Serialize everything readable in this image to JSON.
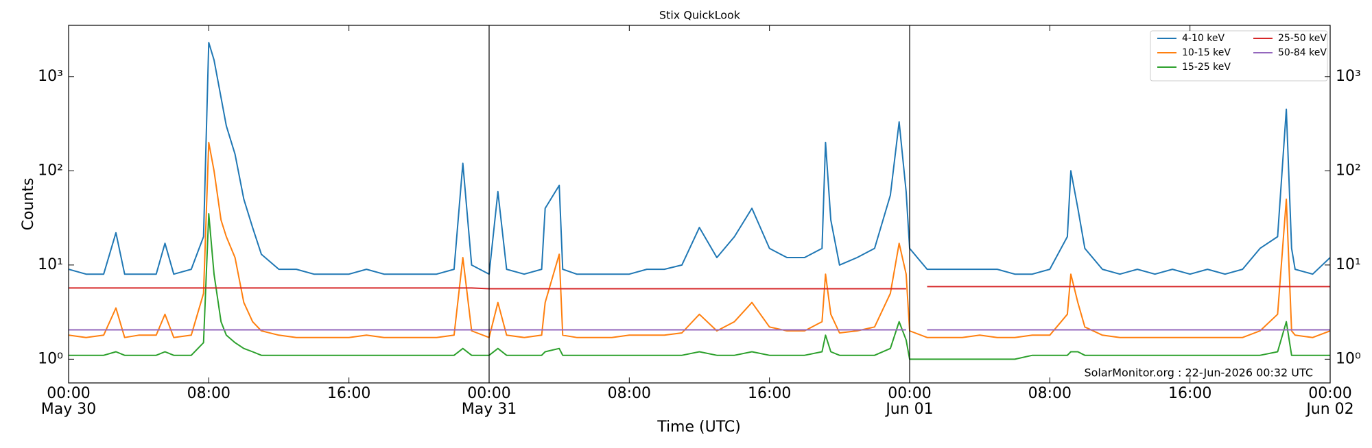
{
  "chart_data": {
    "type": "line",
    "title": "Stix QuickLook",
    "x_label": "Time (UTC)",
    "y_label": "Counts",
    "annotation": "SolarMonitor.org : 22-Jun-2026 00:32 UTC",
    "log_y": true,
    "grid": false,
    "legend": "upper right",
    "legend_columns": 2,
    "day_separators": true,
    "xlim": [
      "May 30 00:00",
      "Jun 02 00:00"
    ],
    "xticks": [
      {
        "value": "May 30 00:00",
        "label": "00:00",
        "date": "May 30"
      },
      {
        "value": "May 30 08:00",
        "label": "08:00"
      },
      {
        "value": "May 30 16:00",
        "label": "16:00"
      },
      {
        "value": "May 31 00:00",
        "label": "00:00",
        "date": "May 31"
      },
      {
        "value": "May 31 08:00",
        "label": "08:00"
      },
      {
        "value": "May 31 16:00",
        "label": "16:00"
      },
      {
        "value": "Jun 01 00:00",
        "label": "00:00",
        "date": "Jun 01"
      },
      {
        "value": "Jun 01 08:00",
        "label": "08:00"
      },
      {
        "value": "Jun 01 16:00",
        "label": "16:00"
      },
      {
        "value": "Jun 02 00:00",
        "label": "00:00",
        "date": "Jun 02"
      }
    ],
    "ylim": [
      0.56,
      3500
    ],
    "yticks": [
      {
        "value": 1,
        "label": "10⁰"
      },
      {
        "value": 10,
        "label": "10¹"
      },
      {
        "value": 100,
        "label": "10²"
      },
      {
        "value": 1000,
        "label": "10³"
      }
    ],
    "x": [
      "May 30 00:00",
      "May 30 01:00",
      "May 30 02:00",
      "May 30 02:42",
      "May 30 03:12",
      "May 30 04:00",
      "May 30 05:00",
      "May 30 05:30",
      "May 30 06:00",
      "May 30 07:00",
      "May 30 07:42",
      "May 30 08:00",
      "May 30 08:18",
      "May 30 08:42",
      "May 30 09:00",
      "May 30 09:30",
      "May 30 10:00",
      "May 30 10:30",
      "May 30 11:00",
      "May 30 12:00",
      "May 30 13:00",
      "May 30 14:00",
      "May 30 15:00",
      "May 30 16:00",
      "May 30 17:00",
      "May 30 18:00",
      "May 30 19:00",
      "May 30 20:00",
      "May 30 21:00",
      "May 30 22:00",
      "May 30 22:30",
      "May 30 23:00",
      "May 31 00:00",
      "May 31 00:30",
      "May 31 01:00",
      "May 31 02:00",
      "May 31 03:00",
      "May 31 03:12",
      "May 31 04:00",
      "May 31 04:12",
      "May 31 05:00",
      "May 31 06:00",
      "May 31 07:00",
      "May 31 08:00",
      "May 31 09:00",
      "May 31 10:00",
      "May 31 11:00",
      "May 31 12:00",
      "May 31 13:00",
      "May 31 14:00",
      "May 31 15:00",
      "May 31 16:00",
      "May 31 17:00",
      "May 31 18:00",
      "May 31 19:00",
      "May 31 19:12",
      "May 31 19:30",
      "May 31 20:00",
      "May 31 21:00",
      "May 31 22:00",
      "May 31 22:54",
      "May 31 23:24",
      "May 31 23:48",
      "Jun 01 00:00",
      "Jun 01 01:00",
      "Jun 01 02:00",
      "Jun 01 03:00",
      "Jun 01 04:00",
      "Jun 01 05:00",
      "Jun 01 06:00",
      "Jun 01 07:00",
      "Jun 01 08:00",
      "Jun 01 09:00",
      "Jun 01 09:12",
      "Jun 01 09:36",
      "Jun 01 10:00",
      "Jun 01 11:00",
      "Jun 01 12:00",
      "Jun 01 13:00",
      "Jun 01 14:00",
      "Jun 01 15:00",
      "Jun 01 16:00",
      "Jun 01 17:00",
      "Jun 01 18:00",
      "Jun 01 19:00",
      "Jun 01 20:00",
      "Jun 01 21:00",
      "Jun 01 21:30",
      "Jun 01 21:48",
      "Jun 01 22:00",
      "Jun 01 23:00",
      "Jun 02 00:00"
    ],
    "series": [
      {
        "name": "4-10 keV",
        "color": "#1f77b4",
        "values": [
          9,
          8,
          8,
          22,
          8,
          8,
          8,
          17,
          8,
          9,
          20,
          2300,
          1500,
          600,
          300,
          150,
          50,
          25,
          13,
          9,
          9,
          8,
          8,
          8,
          9,
          8,
          8,
          8,
          8,
          9,
          120,
          10,
          8,
          60,
          9,
          8,
          9,
          40,
          70,
          9,
          8,
          8,
          8,
          8,
          9,
          9,
          10,
          25,
          12,
          20,
          40,
          15,
          12,
          12,
          15,
          200,
          30,
          10,
          12,
          15,
          55,
          330,
          60,
          15,
          9,
          9,
          9,
          9,
          9,
          8,
          8,
          9,
          20,
          100,
          40,
          15,
          9,
          8,
          9,
          8,
          9,
          8,
          9,
          8,
          9,
          15,
          20,
          450,
          15,
          9,
          8,
          12
        ]
      },
      {
        "name": "10-15 keV",
        "color": "#ff7f0e",
        "values": [
          1.8,
          1.7,
          1.8,
          3.5,
          1.7,
          1.8,
          1.8,
          3,
          1.7,
          1.8,
          5,
          200,
          100,
          30,
          20,
          12,
          4,
          2.5,
          2,
          1.8,
          1.7,
          1.7,
          1.7,
          1.7,
          1.8,
          1.7,
          1.7,
          1.7,
          1.7,
          1.8,
          12,
          2,
          1.7,
          4,
          1.8,
          1.7,
          1.8,
          4,
          13,
          1.8,
          1.7,
          1.7,
          1.7,
          1.8,
          1.8,
          1.8,
          1.9,
          3,
          2,
          2.5,
          4,
          2.2,
          2,
          2,
          2.5,
          8,
          3,
          1.9,
          2,
          2.2,
          5,
          17,
          8,
          2,
          1.7,
          1.7,
          1.7,
          1.8,
          1.7,
          1.7,
          1.8,
          1.8,
          3,
          8,
          4,
          2.2,
          1.8,
          1.7,
          1.7,
          1.7,
          1.7,
          1.7,
          1.7,
          1.7,
          1.7,
          2,
          3,
          50,
          2,
          1.8,
          1.7,
          2
        ]
      },
      {
        "name": "15-25 keV",
        "color": "#2ca02c",
        "values": [
          1.1,
          1.1,
          1.1,
          1.2,
          1.1,
          1.1,
          1.1,
          1.2,
          1.1,
          1.1,
          1.5,
          35,
          8,
          2.5,
          1.8,
          1.5,
          1.3,
          1.2,
          1.1,
          1.1,
          1.1,
          1.1,
          1.1,
          1.1,
          1.1,
          1.1,
          1.1,
          1.1,
          1.1,
          1.1,
          1.3,
          1.1,
          1.1,
          1.3,
          1.1,
          1.1,
          1.1,
          1.2,
          1.3,
          1.1,
          1.1,
          1.1,
          1.1,
          1.1,
          1.1,
          1.1,
          1.1,
          1.2,
          1.1,
          1.1,
          1.2,
          1.1,
          1.1,
          1.1,
          1.2,
          1.8,
          1.2,
          1.1,
          1.1,
          1.1,
          1.3,
          2.5,
          1.6,
          1,
          1,
          1,
          1,
          1,
          1,
          1,
          1.1,
          1.1,
          1.1,
          1.2,
          1.2,
          1.1,
          1.1,
          1.1,
          1.1,
          1.1,
          1.1,
          1.1,
          1.1,
          1.1,
          1.1,
          1.1,
          1.2,
          2.5,
          1.1,
          1.1,
          1.1,
          1.1
        ]
      },
      {
        "name": "25-50 keV",
        "color": "#d62728",
        "values": [
          5.7,
          5.7,
          5.7,
          5.7,
          5.7,
          5.7,
          5.7,
          5.7,
          5.7,
          5.7,
          5.7,
          5.7,
          5.7,
          5.7,
          5.7,
          5.7,
          5.7,
          5.7,
          5.7,
          5.7,
          5.7,
          5.7,
          5.7,
          5.7,
          5.7,
          5.7,
          5.7,
          5.7,
          5.7,
          5.7,
          5.7,
          5.7,
          5.6,
          5.6,
          5.6,
          5.6,
          5.6,
          5.6,
          5.6,
          5.6,
          5.6,
          5.6,
          5.6,
          5.6,
          5.6,
          5.6,
          5.6,
          5.6,
          5.6,
          5.6,
          5.6,
          5.6,
          5.6,
          5.6,
          5.6,
          5.6,
          5.6,
          5.6,
          5.6,
          5.6,
          5.6,
          5.6,
          5.6,
          null,
          5.9,
          5.9,
          5.9,
          5.9,
          5.9,
          5.9,
          5.9,
          5.9,
          5.9,
          5.9,
          5.9,
          5.9,
          5.9,
          5.9,
          5.9,
          5.9,
          5.9,
          5.9,
          5.9,
          5.9,
          5.9,
          5.9,
          5.9,
          5.9,
          5.9,
          5.9,
          5.9,
          5.9
        ]
      },
      {
        "name": "50-84 keV",
        "color": "#9467bd",
        "values": [
          2.05,
          2.05,
          2.05,
          2.05,
          2.05,
          2.05,
          2.05,
          2.05,
          2.05,
          2.05,
          2.05,
          2.05,
          2.05,
          2.05,
          2.05,
          2.05,
          2.05,
          2.05,
          2.05,
          2.05,
          2.05,
          2.05,
          2.05,
          2.05,
          2.05,
          2.05,
          2.05,
          2.05,
          2.05,
          2.05,
          2.05,
          2.05,
          2.05,
          2.05,
          2.05,
          2.05,
          2.05,
          2.05,
          2.05,
          2.05,
          2.05,
          2.05,
          2.05,
          2.05,
          2.05,
          2.05,
          2.05,
          2.05,
          2.05,
          2.05,
          2.05,
          2.05,
          2.05,
          2.05,
          2.05,
          2.05,
          2.05,
          2.05,
          2.05,
          2.05,
          2.05,
          2.05,
          2.05,
          null,
          2.05,
          2.05,
          2.05,
          2.05,
          2.05,
          2.05,
          2.05,
          2.05,
          2.05,
          2.05,
          2.05,
          2.05,
          2.05,
          2.05,
          2.05,
          2.05,
          2.05,
          2.05,
          2.05,
          2.05,
          2.05,
          2.05,
          2.05,
          2.05,
          2.05,
          2.05,
          2.05,
          2.05
        ]
      }
    ]
  }
}
